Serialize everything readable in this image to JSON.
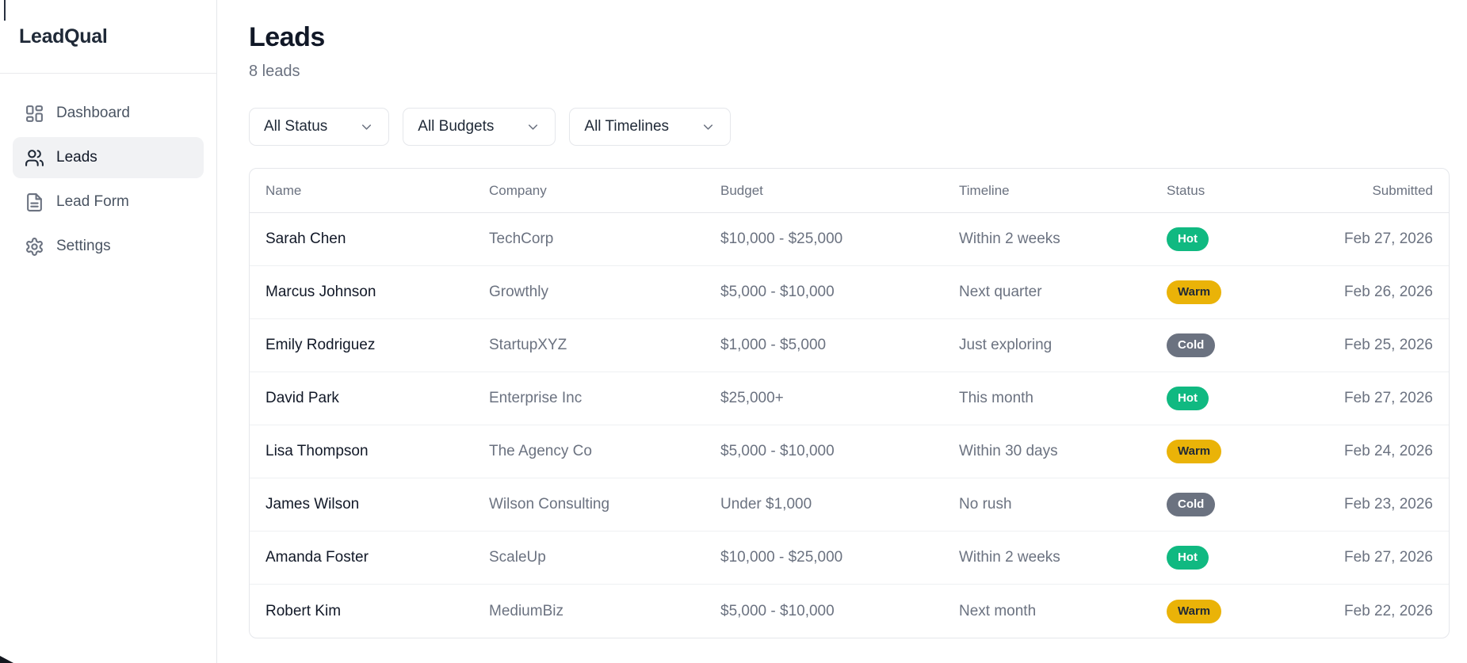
{
  "app": {
    "name": "LeadQual"
  },
  "sidebar": {
    "items": [
      {
        "label": "Dashboard",
        "icon": "dashboard-grid-icon",
        "active": false
      },
      {
        "label": "Leads",
        "icon": "users-icon",
        "active": true
      },
      {
        "label": "Lead Form",
        "icon": "document-icon",
        "active": false
      },
      {
        "label": "Settings",
        "icon": "gear-icon",
        "active": false
      }
    ]
  },
  "header": {
    "title": "Leads",
    "subtitle": "8 leads"
  },
  "filters": [
    {
      "label": "All Status"
    },
    {
      "label": "All Budgets"
    },
    {
      "label": "All Timelines"
    }
  ],
  "table": {
    "columns": [
      "Name",
      "Company",
      "Budget",
      "Timeline",
      "Status",
      "Submitted"
    ],
    "rows": [
      {
        "name": "Sarah Chen",
        "company": "TechCorp",
        "budget": "$10,000 - $25,000",
        "timeline": "Within 2 weeks",
        "status": "Hot",
        "submitted": "Feb 27, 2026"
      },
      {
        "name": "Marcus Johnson",
        "company": "Growthly",
        "budget": "$5,000 - $10,000",
        "timeline": "Next quarter",
        "status": "Warm",
        "submitted": "Feb 26, 2026"
      },
      {
        "name": "Emily Rodriguez",
        "company": "StartupXYZ",
        "budget": "$1,000 - $5,000",
        "timeline": "Just exploring",
        "status": "Cold",
        "submitted": "Feb 25, 2026"
      },
      {
        "name": "David Park",
        "company": "Enterprise Inc",
        "budget": "$25,000+",
        "timeline": "This month",
        "status": "Hot",
        "submitted": "Feb 27, 2026"
      },
      {
        "name": "Lisa Thompson",
        "company": "The Agency Co",
        "budget": "$5,000 - $10,000",
        "timeline": "Within 30 days",
        "status": "Warm",
        "submitted": "Feb 24, 2026"
      },
      {
        "name": "James Wilson",
        "company": "Wilson Consulting",
        "budget": "Under $1,000",
        "timeline": "No rush",
        "status": "Cold",
        "submitted": "Feb 23, 2026"
      },
      {
        "name": "Amanda Foster",
        "company": "ScaleUp",
        "budget": "$10,000 - $25,000",
        "timeline": "Within 2 weeks",
        "status": "Hot",
        "submitted": "Feb 27, 2026"
      },
      {
        "name": "Robert Kim",
        "company": "MediumBiz",
        "budget": "$5,000 - $10,000",
        "timeline": "Next month",
        "status": "Warm",
        "submitted": "Feb 22, 2026"
      }
    ]
  },
  "status_colors": {
    "Hot": {
      "bg": "#10b981",
      "text": "#ffffff"
    },
    "Warm": {
      "bg": "#eab308",
      "text": "#1f2937"
    },
    "Cold": {
      "bg": "#6b7280",
      "text": "#ffffff"
    }
  }
}
